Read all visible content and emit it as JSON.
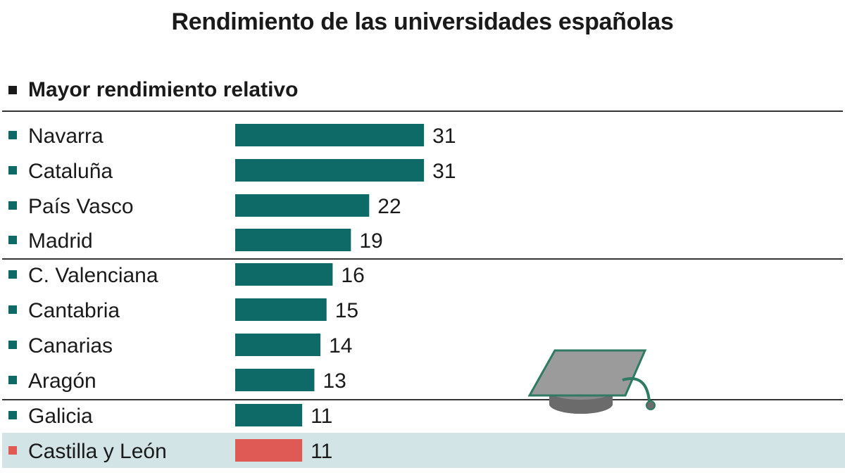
{
  "title": "Rendimiento de las universidades españolas",
  "legend": {
    "label": "Mayor rendimiento relativo",
    "color": "#1a1a1a"
  },
  "colors": {
    "bar": "#0e6a66",
    "highlight_bar": "#e05a55",
    "highlight_row": "#d3e4e6"
  },
  "icons": {
    "decoration": "graduation-cap-icon"
  },
  "chart_data": {
    "type": "bar",
    "orientation": "horizontal",
    "title": "Rendimiento de las universidades españolas",
    "categories": [
      "Navarra",
      "Cataluña",
      "País Vasco",
      "Madrid",
      "C. Valenciana",
      "Cantabria",
      "Canarias",
      "Aragón",
      "Galicia",
      "Castilla y León"
    ],
    "values": [
      31,
      31,
      22,
      19,
      16,
      15,
      14,
      13,
      11,
      11
    ],
    "highlight": "Castilla y León",
    "legend": [
      "Mayor rendimiento relativo"
    ],
    "xlim": [
      0,
      31
    ]
  }
}
